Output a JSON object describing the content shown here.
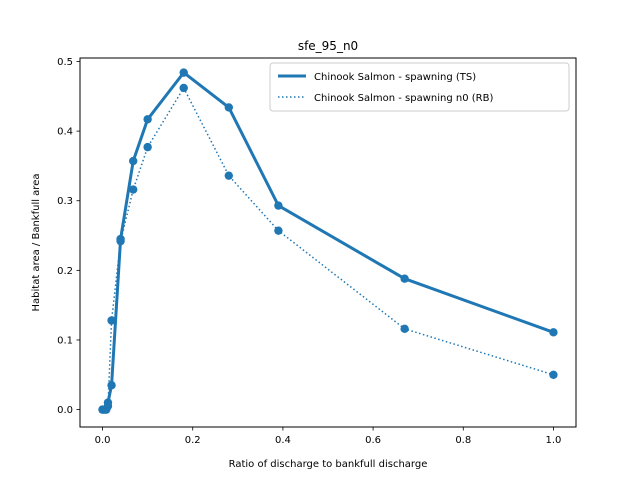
{
  "chart_data": {
    "type": "line",
    "title": "sfe_95_n0",
    "xlabel": "Ratio of discharge to bankfull discharge",
    "ylabel": "Habitat area / Bankfull area",
    "xlim": [
      -0.05,
      1.05
    ],
    "ylim": [
      -0.025,
      0.505
    ],
    "xticks": [
      "0.0",
      "0.2",
      "0.4",
      "0.6",
      "0.8",
      "1.0"
    ],
    "yticks": [
      "0.0",
      "0.1",
      "0.2",
      "0.3",
      "0.4",
      "0.5"
    ],
    "grid": false,
    "legend_position": "top-right",
    "series": [
      {
        "name": "Chinook Salmon - spawning (TS)",
        "style": "solid",
        "color": "#1f77b4",
        "x": [
          0.0,
          0.004,
          0.008,
          0.012,
          0.02,
          0.04,
          0.068,
          0.1,
          0.18,
          0.28,
          0.39,
          0.67,
          1.0
        ],
        "y": [
          0.0,
          0.0,
          0.0,
          0.01,
          0.035,
          0.245,
          0.357,
          0.417,
          0.484,
          0.434,
          0.293,
          0.188,
          0.111
        ]
      },
      {
        "name": "Chinook Salmon - spawning n0 (RB)",
        "style": "dotted",
        "color": "#1f77b4",
        "x": [
          0.0,
          0.004,
          0.008,
          0.012,
          0.02,
          0.04,
          0.068,
          0.1,
          0.18,
          0.28,
          0.39,
          0.67,
          1.0
        ],
        "y": [
          0.0,
          0.0,
          0.0,
          0.005,
          0.128,
          0.242,
          0.316,
          0.377,
          0.462,
          0.336,
          0.257,
          0.116,
          0.05
        ]
      }
    ]
  }
}
